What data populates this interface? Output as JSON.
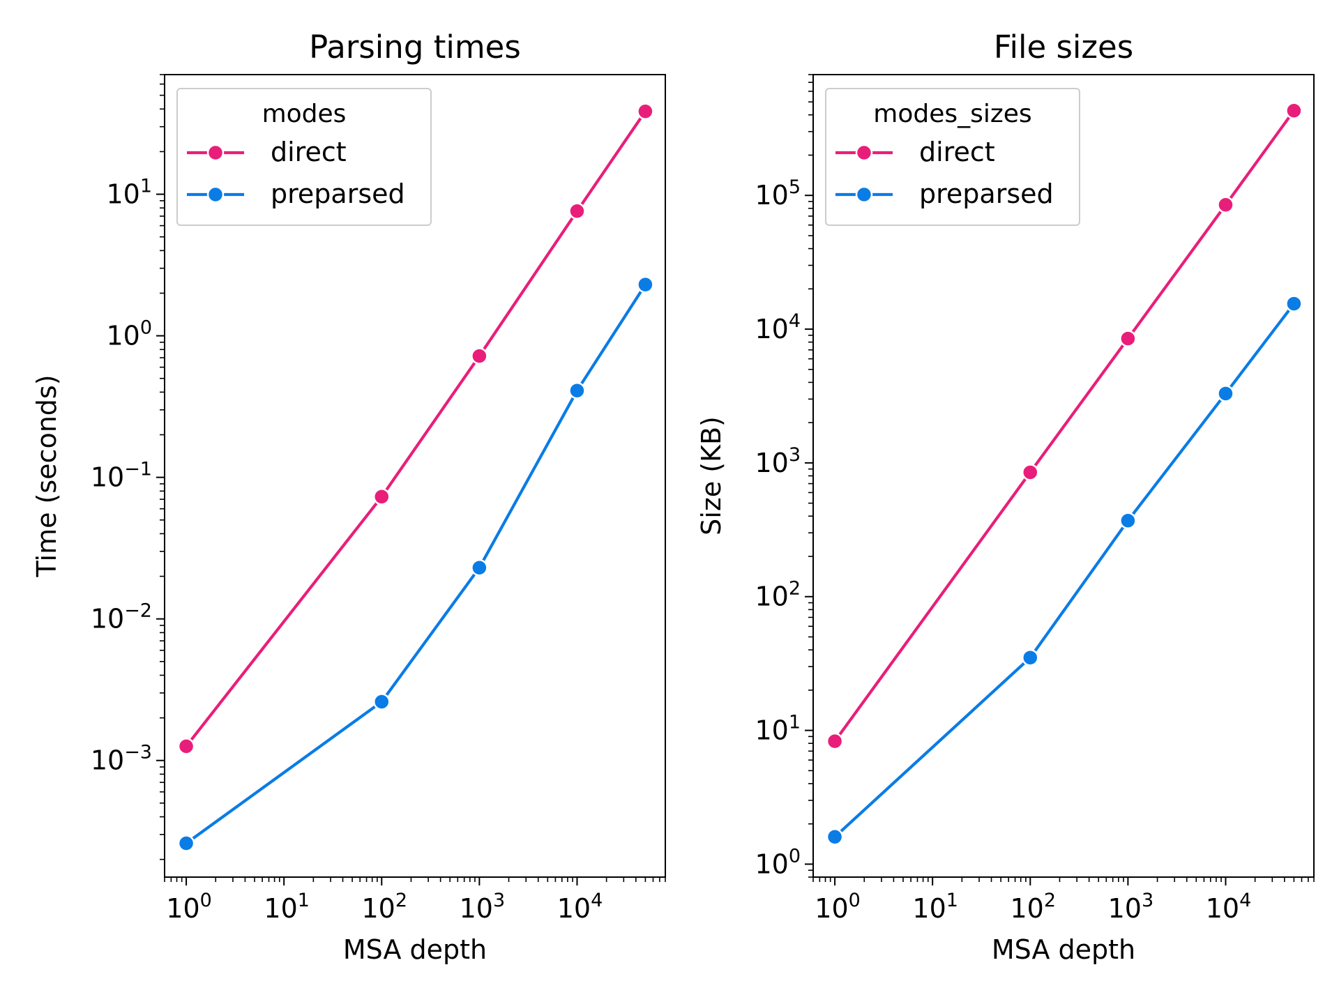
{
  "chart_data": [
    {
      "type": "line",
      "title": "Parsing times",
      "xlabel": "MSA depth",
      "ylabel": "Time (seconds)",
      "xscale": "log",
      "yscale": "log",
      "xlim": [
        0.6,
        80000
      ],
      "ylim": [
        0.00015,
        70
      ],
      "xticks": [
        {
          "base": "10",
          "exp": "0"
        },
        {
          "base": "10",
          "exp": "1"
        },
        {
          "base": "10",
          "exp": "2"
        },
        {
          "base": "10",
          "exp": "3"
        },
        {
          "base": "10",
          "exp": "4"
        }
      ],
      "yticks": [
        {
          "base": "10",
          "exp": "−3"
        },
        {
          "base": "10",
          "exp": "−2"
        },
        {
          "base": "10",
          "exp": "−1"
        },
        {
          "base": "10",
          "exp": "0"
        },
        {
          "base": "10",
          "exp": "1"
        }
      ],
      "legend": {
        "title": "modes",
        "position": "top-left"
      },
      "x": [
        1,
        100,
        1000,
        10000,
        50000
      ],
      "series": [
        {
          "name": "direct",
          "color": "#e91e7a",
          "values": [
            0.00126,
            0.073,
            0.72,
            7.6,
            38.5
          ]
        },
        {
          "name": "preparsed",
          "color": "#0a7ce6",
          "values": [
            0.00026,
            0.0026,
            0.023,
            0.41,
            2.3
          ]
        }
      ]
    },
    {
      "type": "line",
      "title": "File sizes",
      "xlabel": "MSA depth",
      "ylabel": "Size (KB)",
      "xscale": "log",
      "yscale": "log",
      "xlim": [
        0.6,
        80000
      ],
      "ylim": [
        0.8,
        800000
      ],
      "xticks": [
        {
          "base": "10",
          "exp": "0"
        },
        {
          "base": "10",
          "exp": "1"
        },
        {
          "base": "10",
          "exp": "2"
        },
        {
          "base": "10",
          "exp": "3"
        },
        {
          "base": "10",
          "exp": "4"
        }
      ],
      "yticks": [
        {
          "base": "10",
          "exp": "0"
        },
        {
          "base": "10",
          "exp": "1"
        },
        {
          "base": "10",
          "exp": "2"
        },
        {
          "base": "10",
          "exp": "3"
        },
        {
          "base": "10",
          "exp": "4"
        },
        {
          "base": "10",
          "exp": "5"
        }
      ],
      "legend": {
        "title": "modes_sizes",
        "position": "top-left"
      },
      "x": [
        1,
        100,
        1000,
        10000,
        50000
      ],
      "series": [
        {
          "name": "direct",
          "color": "#e91e7a",
          "values": [
            8.3,
            850,
            8500,
            85000,
            430000
          ]
        },
        {
          "name": "preparsed",
          "color": "#0a7ce6",
          "values": [
            1.6,
            35,
            370,
            3300,
            15500
          ]
        }
      ]
    }
  ]
}
